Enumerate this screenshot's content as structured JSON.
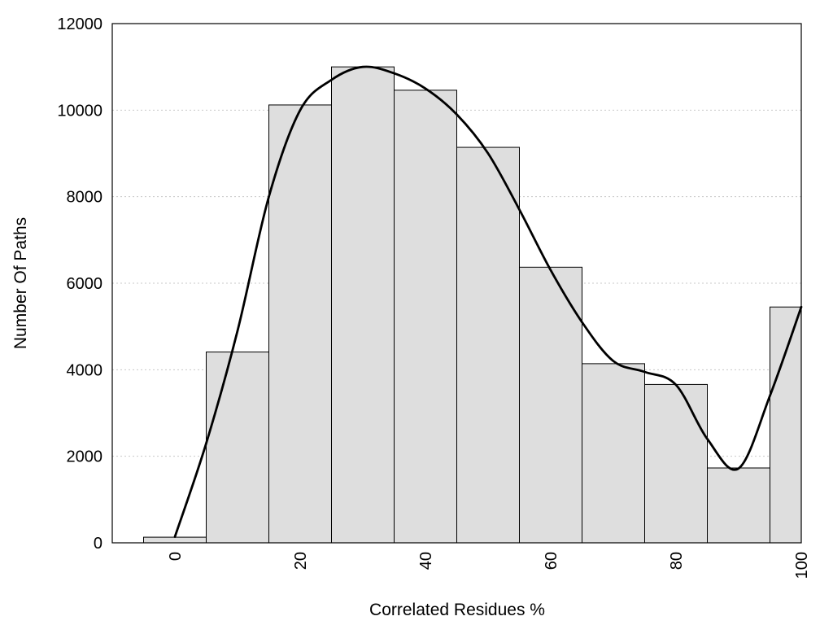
{
  "chart_data": {
    "type": "bar",
    "title": "",
    "xlabel": "Correlated Residues %",
    "ylabel": "Number Of Paths",
    "xlim": [
      -10,
      100
    ],
    "ylim": [
      0,
      12000
    ],
    "grid": "horizontal-dotted",
    "x_ticks": [
      0,
      20,
      40,
      60,
      80,
      100
    ],
    "y_ticks": [
      0,
      2000,
      4000,
      6000,
      8000,
      10000,
      12000
    ],
    "bin_width": 10,
    "bins": [
      {
        "x": 0,
        "value": 130
      },
      {
        "x": 10,
        "value": 4410
      },
      {
        "x": 20,
        "value": 10120
      },
      {
        "x": 30,
        "value": 11000
      },
      {
        "x": 40,
        "value": 10460
      },
      {
        "x": 50,
        "value": 9140
      },
      {
        "x": 60,
        "value": 6370
      },
      {
        "x": 70,
        "value": 4140
      },
      {
        "x": 80,
        "value": 3660
      },
      {
        "x": 90,
        "value": 1730
      },
      {
        "x": 100,
        "value": 5450
      }
    ],
    "smooth_curve": {
      "x": [
        0,
        5,
        10,
        15,
        20,
        25,
        30,
        35,
        40,
        45,
        50,
        55,
        60,
        65,
        70,
        75,
        80,
        85,
        90,
        95,
        100
      ],
      "y": [
        140,
        2300,
        4900,
        8000,
        10000,
        10700,
        11000,
        10850,
        10500,
        9900,
        9000,
        7700,
        6300,
        5100,
        4200,
        3950,
        3650,
        2400,
        1720,
        3400,
        5450
      ]
    }
  },
  "colors": {
    "bar_fill": "#dedede",
    "bar_stroke": "#000000",
    "curve": "#000000"
  }
}
